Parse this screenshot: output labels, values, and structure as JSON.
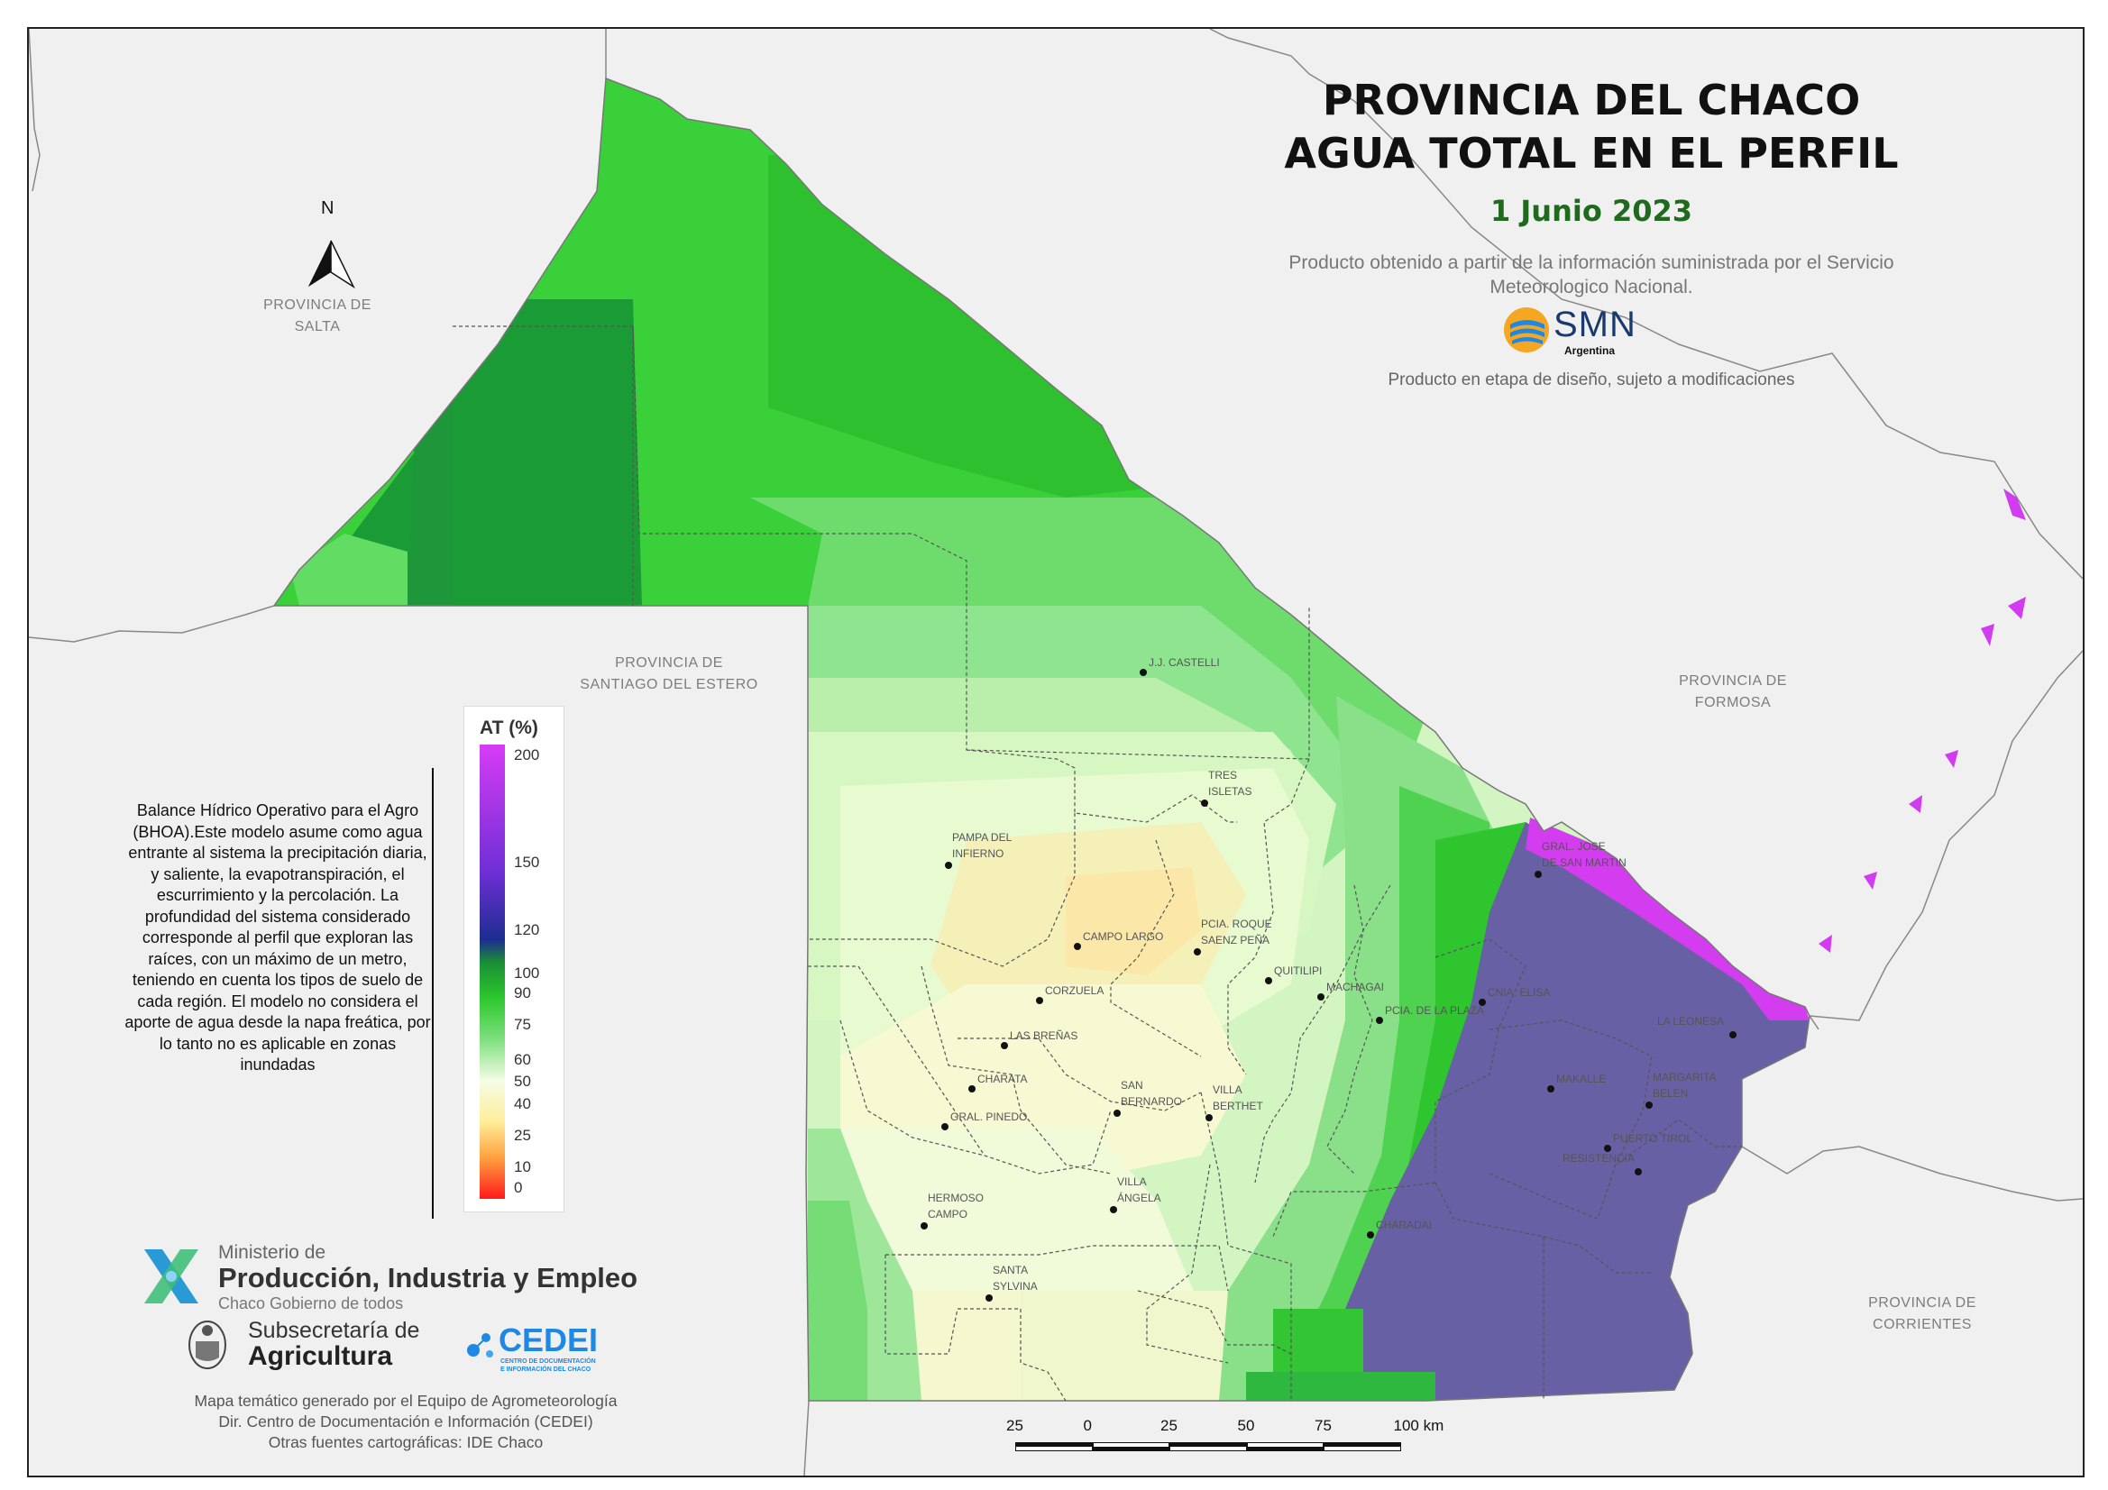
{
  "header": {
    "title_line1": "PROVINCIA DEL CHACO",
    "title_line2": "AGUA TOTAL EN EL PERFIL",
    "date": "1 Junio 2023",
    "source_text": "Producto obtenido a partir de la información suministrada por el Servicio Meteorologico Nacional.",
    "disclaimer": "Producto en etapa de diseño, sujeto a modificaciones"
  },
  "smn_logo": {
    "name": "SMN",
    "sub": "Argentina"
  },
  "north_arrow": {
    "letter": "N"
  },
  "neighbors": {
    "salta": [
      "PROVINCIA DE",
      "SALTA"
    ],
    "santiago": [
      "PROVINCIA DE",
      "SANTIAGO DEL ESTERO"
    ],
    "formosa": [
      "PROVINCIA DE",
      "FORMOSA"
    ],
    "corrientes": [
      "PROVINCIA DE",
      "CORRIENTES"
    ]
  },
  "bhoa_text": "Balance Hídrico Operativo para el Agro (BHOA).Este modelo asume como agua entrante al sistema la precipitación diaria, y saliente, la evapotranspiración, el escurrimiento y la percolación. La profundidad del sistema considerado corresponde al perfil que exploran las raíces, con un máximo de un metro, teniendo en cuenta los tipos de suelo de cada región. El modelo no considera el aporte de agua desde la napa freática, por lo tanto no es aplicable en zonas inundadas",
  "legend": {
    "title": "AT (%)",
    "ticks": [
      "200",
      "150",
      "120",
      "100",
      "90",
      "75",
      "60",
      "50",
      "40",
      "25",
      "10",
      "0"
    ],
    "colors": {
      "low": "#ff1a1a",
      "orange": "#ffa040",
      "yellow": "#ffee9a",
      "pale": "#f4fde6",
      "light_green": "#7fe07f",
      "green": "#2ec82e",
      "dark_green": "#1a8f35",
      "navy": "#1c2d8f",
      "purple": "#6f2fd6",
      "magenta": "#d63cf5"
    }
  },
  "towns": [
    {
      "label": [
        "J.J. CASTELLI"
      ]
    },
    {
      "label": [
        "TRES",
        "ISLETAS"
      ]
    },
    {
      "label": [
        "PAMPA DEL",
        "INFIERNO"
      ]
    },
    {
      "label": [
        "GRAL. JOSE",
        "DE SAN MARTIN"
      ]
    },
    {
      "label": [
        "CAMPO LARGO"
      ]
    },
    {
      "label": [
        "PCIA. ROQUE",
        "SAENZ PEÑA"
      ]
    },
    {
      "label": [
        "QUITILIPI"
      ]
    },
    {
      "label": [
        "MACHAGAI"
      ]
    },
    {
      "label": [
        "CNIA. ELISA"
      ]
    },
    {
      "label": [
        "CORZUELA"
      ]
    },
    {
      "label": [
        "PCIA. DE LA PLAZA"
      ]
    },
    {
      "label": [
        "LA LEONESA"
      ]
    },
    {
      "label": [
        "LAS BREÑAS"
      ]
    },
    {
      "label": [
        "CHARATA"
      ]
    },
    {
      "label": [
        "MAKALLE"
      ]
    },
    {
      "label": [
        "MARGARITA",
        "BELEN"
      ]
    },
    {
      "label": [
        "SAN",
        "BERNARDO"
      ]
    },
    {
      "label": [
        "VILLA",
        "BERTHET"
      ]
    },
    {
      "label": [
        "GRAL. PINEDO"
      ]
    },
    {
      "label": [
        "PUERTO TIROL"
      ]
    },
    {
      "label": [
        "RESISTENCIA"
      ]
    },
    {
      "label": [
        "HERMOSO",
        "CAMPO"
      ]
    },
    {
      "label": [
        "VILLA",
        "ÁNGELA"
      ]
    },
    {
      "label": [
        "CHARADAI"
      ]
    },
    {
      "label": [
        "SANTA",
        "SYLVINA"
      ]
    }
  ],
  "logos": {
    "ministry_line1": "Ministerio de",
    "ministry_line2": "Producción, Industria y Empleo",
    "ministry_line3": "Chaco Gobierno de todos",
    "subsec_line1": "Subsecretaría de",
    "subsec_line2": "Agricultura",
    "cedei": "CEDEI",
    "cedei_sub1": "CENTRO DE DOCUMENTACIÓN",
    "cedei_sub2": "E INFORMACIÓN DEL CHACO"
  },
  "footer": {
    "line1": "Mapa temático generado por el Equipo de Agrometeorología",
    "line2": "Dir. Centro de Documentación e Información (CEDEI)",
    "line3": "Otras fuentes cartográficas: IDE Chaco"
  },
  "scale_bar": {
    "labels": [
      "25",
      "0",
      "25",
      "50",
      "75",
      "100 km"
    ]
  }
}
